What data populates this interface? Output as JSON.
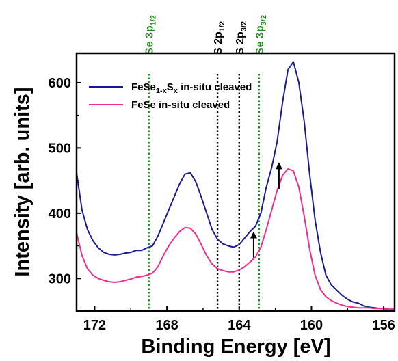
{
  "chart_data": {
    "type": "line",
    "xlabel": "Binding Energy [eV]",
    "ylabel": "Intensity [arb. units]",
    "xlim": [
      173,
      155.4
    ],
    "ylim": [
      250,
      645
    ],
    "x_reversed": true,
    "x_ticks": [
      172,
      168,
      164,
      160,
      156
    ],
    "y_ticks": [
      300,
      400,
      500,
      600
    ],
    "legend_position": "top-left",
    "legend": [
      {
        "label": "FeSe",
        "sub": "1-x",
        "label2": "S",
        "sub2": "x",
        "label3": " in-situ cleaved",
        "color": "#1b1b8f"
      },
      {
        "label": "FeSe in-situ cleaved",
        "sub": "",
        "label2": "",
        "sub2": "",
        "label3": "",
        "color": "#ee2e8b"
      }
    ],
    "series": [
      {
        "color": "#1b1b8f",
        "x": [
          173,
          172.7,
          172.4,
          172.1,
          171.8,
          171.5,
          171.2,
          170.9,
          170.6,
          170.3,
          170,
          169.7,
          169.4,
          169.1,
          168.8,
          168.5,
          168.2,
          167.9,
          167.6,
          167.3,
          167,
          166.7,
          166.4,
          166.1,
          165.8,
          165.5,
          165.2,
          164.9,
          164.6,
          164.3,
          164,
          163.7,
          163.4,
          163.1,
          162.8,
          162.5,
          162.2,
          161.9,
          161.6,
          161.3,
          161,
          160.7,
          160.4,
          160.1,
          159.8,
          159.5,
          159.2,
          158.9,
          158.6,
          158.3,
          158,
          157.7,
          157.4,
          157.1,
          156.8,
          156.5,
          156.2,
          155.9,
          155.6,
          155.4
        ],
        "values": [
          462,
          405,
          375,
          358,
          347,
          340,
          337,
          336,
          337,
          339,
          340,
          343,
          343,
          347,
          350,
          365,
          385,
          405,
          425,
          445,
          460,
          462,
          448,
          425,
          400,
          375,
          360,
          353,
          350,
          348,
          352,
          362,
          372,
          380,
          400,
          440,
          470,
          510,
          570,
          620,
          632,
          600,
          540,
          460,
          390,
          340,
          305,
          290,
          282,
          274,
          268,
          264,
          262,
          258,
          256,
          255,
          254,
          254,
          252,
          252
        ]
      },
      {
        "color": "#ee2e8b",
        "x": [
          173,
          172.7,
          172.4,
          172.1,
          171.8,
          171.5,
          171.2,
          170.9,
          170.6,
          170.3,
          170,
          169.7,
          169.4,
          169.1,
          168.8,
          168.5,
          168.2,
          167.9,
          167.6,
          167.3,
          167,
          166.7,
          166.4,
          166.1,
          165.8,
          165.5,
          165.2,
          164.9,
          164.6,
          164.3,
          164,
          163.7,
          163.4,
          163.1,
          162.8,
          162.5,
          162.2,
          161.9,
          161.6,
          161.3,
          161,
          160.7,
          160.4,
          160.1,
          159.8,
          159.5,
          159.2,
          158.9,
          158.6,
          158.3,
          158,
          157.7,
          157.4,
          157.1,
          156.8,
          156.5,
          156.2,
          155.9,
          155.6,
          155.4
        ],
        "values": [
          370,
          335,
          315,
          305,
          300,
          297,
          295,
          294,
          295,
          297,
          299,
          302,
          303,
          305,
          308,
          318,
          335,
          350,
          362,
          372,
          378,
          377,
          368,
          352,
          335,
          322,
          315,
          312,
          310,
          310,
          313,
          318,
          325,
          333,
          348,
          375,
          405,
          435,
          458,
          468,
          465,
          440,
          395,
          345,
          305,
          283,
          272,
          266,
          262,
          259,
          257,
          256,
          255,
          255,
          255,
          254,
          254,
          253,
          253,
          253
        ]
      }
    ],
    "reference_lines": [
      {
        "x": 169.0,
        "label": "Se 3p",
        "sub": "1/2",
        "color": "#1e8c1e"
      },
      {
        "x": 165.2,
        "label": "S 2p",
        "sub": "1/2",
        "color": "#000000"
      },
      {
        "x": 164.0,
        "label": "S 2p",
        "sub": "3/2",
        "color": "#000000"
      },
      {
        "x": 162.9,
        "label": "Se 3p",
        "sub": "3/2",
        "color": "#1e8c1e"
      }
    ],
    "arrows": [
      {
        "x": 163.2,
        "from": 332,
        "to": 372
      },
      {
        "x": 161.8,
        "from": 437,
        "to": 478
      }
    ]
  }
}
